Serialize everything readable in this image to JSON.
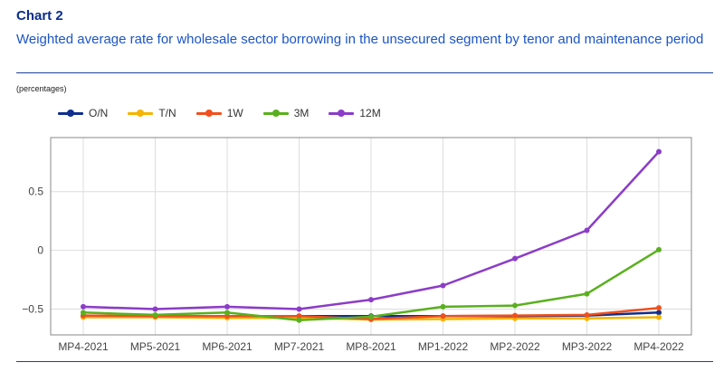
{
  "header": {
    "chart_number": "Chart 2",
    "subtitle": "Weighted average rate for wholesale sector borrowing in the unsecured segment by tenor and maintenance period",
    "units": "(percentages)"
  },
  "colors": {
    "title": "#0b2d8c",
    "subtitle": "#1c55c4",
    "rule": "#1c3f9c",
    "grid": "#dddddd",
    "frame": "#888888"
  },
  "chart_data": {
    "type": "line",
    "title": "Chart 2",
    "subtitle": "Weighted average rate for wholesale sector borrowing in the unsecured segment by tenor and maintenance period",
    "ylabel": "(percentages)",
    "categories": [
      "MP4-2021",
      "MP5-2021",
      "MP6-2021",
      "MP7-2021",
      "MP8-2021",
      "MP1-2022",
      "MP2-2022",
      "MP3-2022",
      "MP4-2022"
    ],
    "yticks": [
      0.5,
      0,
      -0.5
    ],
    "ytick_labels": [
      "0.5",
      "0",
      "−0.5"
    ],
    "ylim": [
      -0.72,
      0.96
    ],
    "grid": true,
    "legend_position": "top-left",
    "series": [
      {
        "name": "O/N",
        "color": "#102f8e",
        "values": [
          -0.56,
          -0.56,
          -0.56,
          -0.56,
          -0.56,
          -0.56,
          -0.56,
          -0.555,
          -0.53
        ]
      },
      {
        "name": "T/N",
        "color": "#f5b400",
        "values": [
          -0.57,
          -0.57,
          -0.575,
          -0.575,
          -0.59,
          -0.585,
          -0.58,
          -0.58,
          -0.57
        ]
      },
      {
        "name": "1W",
        "color": "#f0501e",
        "values": [
          -0.555,
          -0.56,
          -0.56,
          -0.56,
          -0.585,
          -0.56,
          -0.555,
          -0.55,
          -0.49
        ]
      },
      {
        "name": "3M",
        "color": "#5ab01e",
        "values": [
          -0.53,
          -0.55,
          -0.53,
          -0.595,
          -0.565,
          -0.48,
          -0.47,
          -0.37,
          0.005
        ]
      },
      {
        "name": "12M",
        "color": "#8c3cc8",
        "values": [
          -0.48,
          -0.5,
          -0.48,
          -0.5,
          -0.42,
          -0.3,
          -0.07,
          0.17,
          0.84
        ]
      }
    ]
  }
}
